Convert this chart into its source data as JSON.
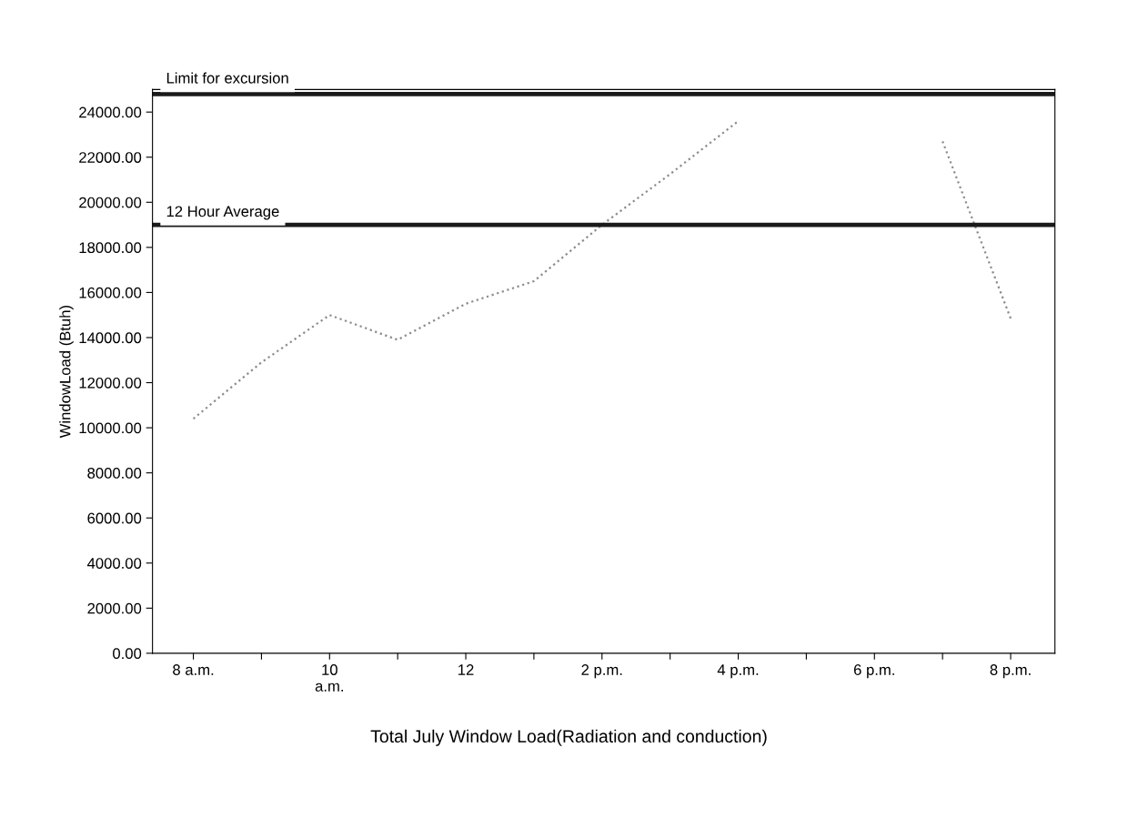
{
  "chart_data": {
    "type": "line",
    "categories": [
      "8 a.m.",
      null,
      "10\na.m.",
      null,
      "12",
      null,
      "2 p.m.",
      null,
      "4 p.m.",
      null,
      "6 p.m.",
      null,
      "8 p.m."
    ],
    "series": [
      {
        "color": "#8c8c8c",
        "values": [
          10400,
          12900,
          15000,
          13900,
          15500,
          16500,
          19000,
          21250,
          23600,
          null,
          null,
          22700,
          14850
        ]
      }
    ],
    "ylabel": "WindowLoad (Btuh)",
    "ylim": [
      0,
      25000
    ],
    "yticks": [
      {
        "value": 0,
        "label": "0.00"
      },
      {
        "value": 2000,
        "label": "2000.00"
      },
      {
        "value": 4000,
        "label": "4000.00"
      },
      {
        "value": 6000,
        "label": "6000.00"
      },
      {
        "value": 8000,
        "label": "8000.00"
      },
      {
        "value": 10000,
        "label": "10000.00"
      },
      {
        "value": 12000,
        "label": "12000.00"
      },
      {
        "value": 14000,
        "label": "14000.00"
      },
      {
        "value": 16000,
        "label": "16000.00"
      },
      {
        "value": 18000,
        "label": "18000.00"
      },
      {
        "value": 20000,
        "label": "20000.00"
      },
      {
        "value": 22000,
        "label": "22000.00"
      },
      {
        "value": 24000,
        "label": "24000.00"
      }
    ],
    "ref_lines": [
      {
        "axis": "y",
        "value": 24800,
        "label": "Limit for excursion",
        "color": "#1a1a1a"
      },
      {
        "axis": "y",
        "value": 19000,
        "label": "12 Hour Average",
        "color": "#1a1a1a"
      }
    ],
    "line_style": "dotted",
    "marker": "none",
    "grid": false,
    "annotations": [
      "Total July Window Load(Radiation and conduction)"
    ]
  }
}
